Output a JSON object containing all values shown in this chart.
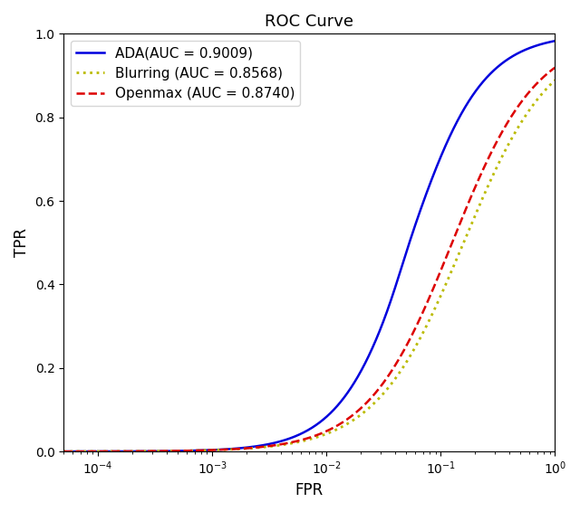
{
  "title": "ROC Curve",
  "xlabel": "FPR",
  "ylabel": "TPR",
  "ylim": [
    0.0,
    1.0
  ],
  "curves": [
    {
      "label": "ADA(AUC = 0.9009)",
      "color": "#0000dd",
      "linestyle": "solid",
      "linewidth": 1.8
    },
    {
      "label": "Blurring (AUC = 0.8568)",
      "color": "#bbbb00",
      "linestyle": "dotted",
      "linewidth": 2.0
    },
    {
      "label": "Openmax (AUC = 0.8740)",
      "color": "#dd0000",
      "linestyle": "dashed",
      "linewidth": 1.8
    }
  ],
  "legend_loc": "upper left",
  "figsize": [
    6.4,
    5.66
  ],
  "dpi": 100
}
